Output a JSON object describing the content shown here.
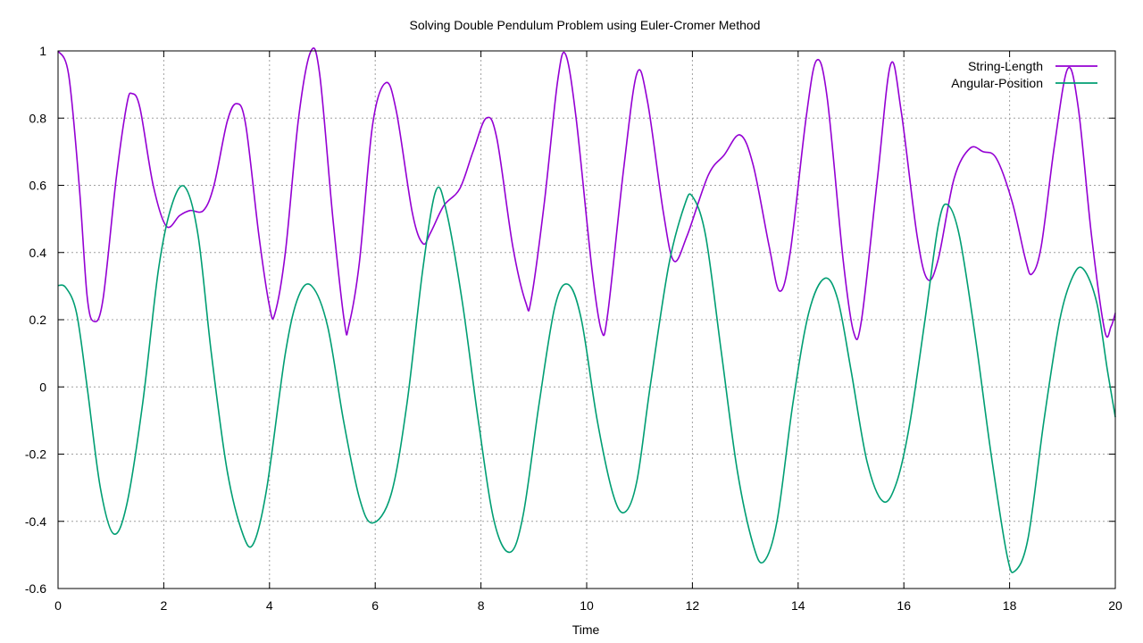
{
  "chart_data": {
    "type": "line",
    "title": "Solving Double Pendulum Problem using Euler-Cromer Method",
    "xlabel": "Time",
    "ylabel": "",
    "xlim": [
      0,
      20
    ],
    "ylim": [
      -0.6,
      1
    ],
    "xticks": [
      0,
      2,
      4,
      6,
      8,
      10,
      12,
      14,
      16,
      18,
      20
    ],
    "yticks": [
      -0.6,
      -0.4,
      -0.2,
      0,
      0.2,
      0.4,
      0.6,
      0.8,
      1
    ],
    "xtick_labels": [
      "0",
      "2",
      "4",
      "6",
      "8",
      "10",
      "12",
      "14",
      "16",
      "18",
      "20"
    ],
    "ytick_labels": [
      "-0.6",
      "-0.4",
      "-0.2",
      "0",
      "0.2",
      "0.4",
      "0.6",
      "0.8",
      "1"
    ],
    "grid": true,
    "legend_position": "top-right",
    "series": [
      {
        "name": "String-Length",
        "color": "#9400d3",
        "points": [
          [
            0,
            1.0
          ],
          [
            0.2,
            0.93
          ],
          [
            0.4,
            0.6
          ],
          [
            0.55,
            0.27
          ],
          [
            0.68,
            0.195
          ],
          [
            0.85,
            0.26
          ],
          [
            1.1,
            0.62
          ],
          [
            1.3,
            0.84
          ],
          [
            1.4,
            0.873
          ],
          [
            1.55,
            0.83
          ],
          [
            1.8,
            0.6
          ],
          [
            2.05,
            0.478
          ],
          [
            2.3,
            0.51
          ],
          [
            2.5,
            0.525
          ],
          [
            2.75,
            0.525
          ],
          [
            2.95,
            0.6
          ],
          [
            3.2,
            0.79
          ],
          [
            3.38,
            0.843
          ],
          [
            3.55,
            0.78
          ],
          [
            3.8,
            0.45
          ],
          [
            4.0,
            0.24
          ],
          [
            4.1,
            0.217
          ],
          [
            4.3,
            0.4
          ],
          [
            4.55,
            0.8
          ],
          [
            4.78,
            0.998
          ],
          [
            4.95,
            0.93
          ],
          [
            5.2,
            0.5
          ],
          [
            5.42,
            0.19
          ],
          [
            5.5,
            0.182
          ],
          [
            5.7,
            0.37
          ],
          [
            5.95,
            0.78
          ],
          [
            6.2,
            0.905
          ],
          [
            6.4,
            0.82
          ],
          [
            6.7,
            0.52
          ],
          [
            6.9,
            0.427
          ],
          [
            7.05,
            0.46
          ],
          [
            7.3,
            0.54
          ],
          [
            7.6,
            0.59
          ],
          [
            7.85,
            0.7
          ],
          [
            8.1,
            0.8
          ],
          [
            8.3,
            0.74
          ],
          [
            8.6,
            0.42
          ],
          [
            8.85,
            0.25
          ],
          [
            8.95,
            0.26
          ],
          [
            9.2,
            0.55
          ],
          [
            9.45,
            0.91
          ],
          [
            9.6,
            0.99
          ],
          [
            9.8,
            0.8
          ],
          [
            10.1,
            0.35
          ],
          [
            10.28,
            0.167
          ],
          [
            10.4,
            0.22
          ],
          [
            10.7,
            0.65
          ],
          [
            10.95,
            0.933
          ],
          [
            11.15,
            0.85
          ],
          [
            11.45,
            0.52
          ],
          [
            11.65,
            0.375
          ],
          [
            11.9,
            0.45
          ],
          [
            12.3,
            0.63
          ],
          [
            12.6,
            0.69
          ],
          [
            12.9,
            0.75
          ],
          [
            13.15,
            0.66
          ],
          [
            13.45,
            0.42
          ],
          [
            13.65,
            0.285
          ],
          [
            13.85,
            0.4
          ],
          [
            14.15,
            0.8
          ],
          [
            14.35,
            0.972
          ],
          [
            14.55,
            0.86
          ],
          [
            14.85,
            0.38
          ],
          [
            15.05,
            0.163
          ],
          [
            15.2,
            0.2
          ],
          [
            15.5,
            0.62
          ],
          [
            15.75,
            0.96
          ],
          [
            15.95,
            0.82
          ],
          [
            16.25,
            0.45
          ],
          [
            16.45,
            0.32
          ],
          [
            16.65,
            0.38
          ],
          [
            16.95,
            0.62
          ],
          [
            17.25,
            0.71
          ],
          [
            17.5,
            0.7
          ],
          [
            17.75,
            0.68
          ],
          [
            18.05,
            0.55
          ],
          [
            18.3,
            0.38
          ],
          [
            18.42,
            0.336
          ],
          [
            18.6,
            0.42
          ],
          [
            18.85,
            0.72
          ],
          [
            19.1,
            0.947
          ],
          [
            19.3,
            0.83
          ],
          [
            19.55,
            0.45
          ],
          [
            19.8,
            0.167
          ],
          [
            19.92,
            0.18
          ],
          [
            20.0,
            0.22
          ]
        ]
      },
      {
        "name": "Angular-Position",
        "color": "#009e73",
        "points": [
          [
            0,
            0.302
          ],
          [
            0.15,
            0.295
          ],
          [
            0.35,
            0.22
          ],
          [
            0.55,
            0.0
          ],
          [
            0.8,
            -0.3
          ],
          [
            1.05,
            -0.437
          ],
          [
            1.3,
            -0.35
          ],
          [
            1.6,
            -0.05
          ],
          [
            1.9,
            0.35
          ],
          [
            2.15,
            0.54
          ],
          [
            2.4,
            0.595
          ],
          [
            2.65,
            0.45
          ],
          [
            2.9,
            0.1
          ],
          [
            3.2,
            -0.25
          ],
          [
            3.5,
            -0.44
          ],
          [
            3.7,
            -0.465
          ],
          [
            3.95,
            -0.3
          ],
          [
            4.3,
            0.1
          ],
          [
            4.55,
            0.27
          ],
          [
            4.8,
            0.3
          ],
          [
            5.1,
            0.18
          ],
          [
            5.4,
            -0.1
          ],
          [
            5.7,
            -0.33
          ],
          [
            5.95,
            -0.405
          ],
          [
            6.3,
            -0.32
          ],
          [
            6.6,
            -0.05
          ],
          [
            6.9,
            0.35
          ],
          [
            7.15,
            0.585
          ],
          [
            7.35,
            0.52
          ],
          [
            7.65,
            0.25
          ],
          [
            7.95,
            -0.1
          ],
          [
            8.25,
            -0.4
          ],
          [
            8.55,
            -0.492
          ],
          [
            8.8,
            -0.38
          ],
          [
            9.1,
            -0.05
          ],
          [
            9.4,
            0.24
          ],
          [
            9.65,
            0.305
          ],
          [
            9.9,
            0.2
          ],
          [
            10.2,
            -0.1
          ],
          [
            10.5,
            -0.32
          ],
          [
            10.72,
            -0.373
          ],
          [
            10.95,
            -0.28
          ],
          [
            11.2,
            0.0
          ],
          [
            11.55,
            0.36
          ],
          [
            11.85,
            0.54
          ],
          [
            12.0,
            0.567
          ],
          [
            12.25,
            0.45
          ],
          [
            12.55,
            0.1
          ],
          [
            12.85,
            -0.25
          ],
          [
            13.15,
            -0.47
          ],
          [
            13.35,
            -0.52
          ],
          [
            13.6,
            -0.4
          ],
          [
            13.9,
            -0.05
          ],
          [
            14.2,
            0.22
          ],
          [
            14.5,
            0.323
          ],
          [
            14.75,
            0.26
          ],
          [
            15.0,
            0.05
          ],
          [
            15.3,
            -0.22
          ],
          [
            15.6,
            -0.34
          ],
          [
            15.85,
            -0.29
          ],
          [
            16.1,
            -0.12
          ],
          [
            16.4,
            0.2
          ],
          [
            16.65,
            0.48
          ],
          [
            16.82,
            0.543
          ],
          [
            17.05,
            0.45
          ],
          [
            17.35,
            0.15
          ],
          [
            17.65,
            -0.2
          ],
          [
            17.95,
            -0.5
          ],
          [
            18.1,
            -0.548
          ],
          [
            18.35,
            -0.45
          ],
          [
            18.65,
            -0.1
          ],
          [
            18.95,
            0.2
          ],
          [
            19.2,
            0.33
          ],
          [
            19.4,
            0.35
          ],
          [
            19.65,
            0.25
          ],
          [
            19.85,
            0.05
          ],
          [
            20.0,
            -0.09
          ]
        ]
      }
    ]
  }
}
